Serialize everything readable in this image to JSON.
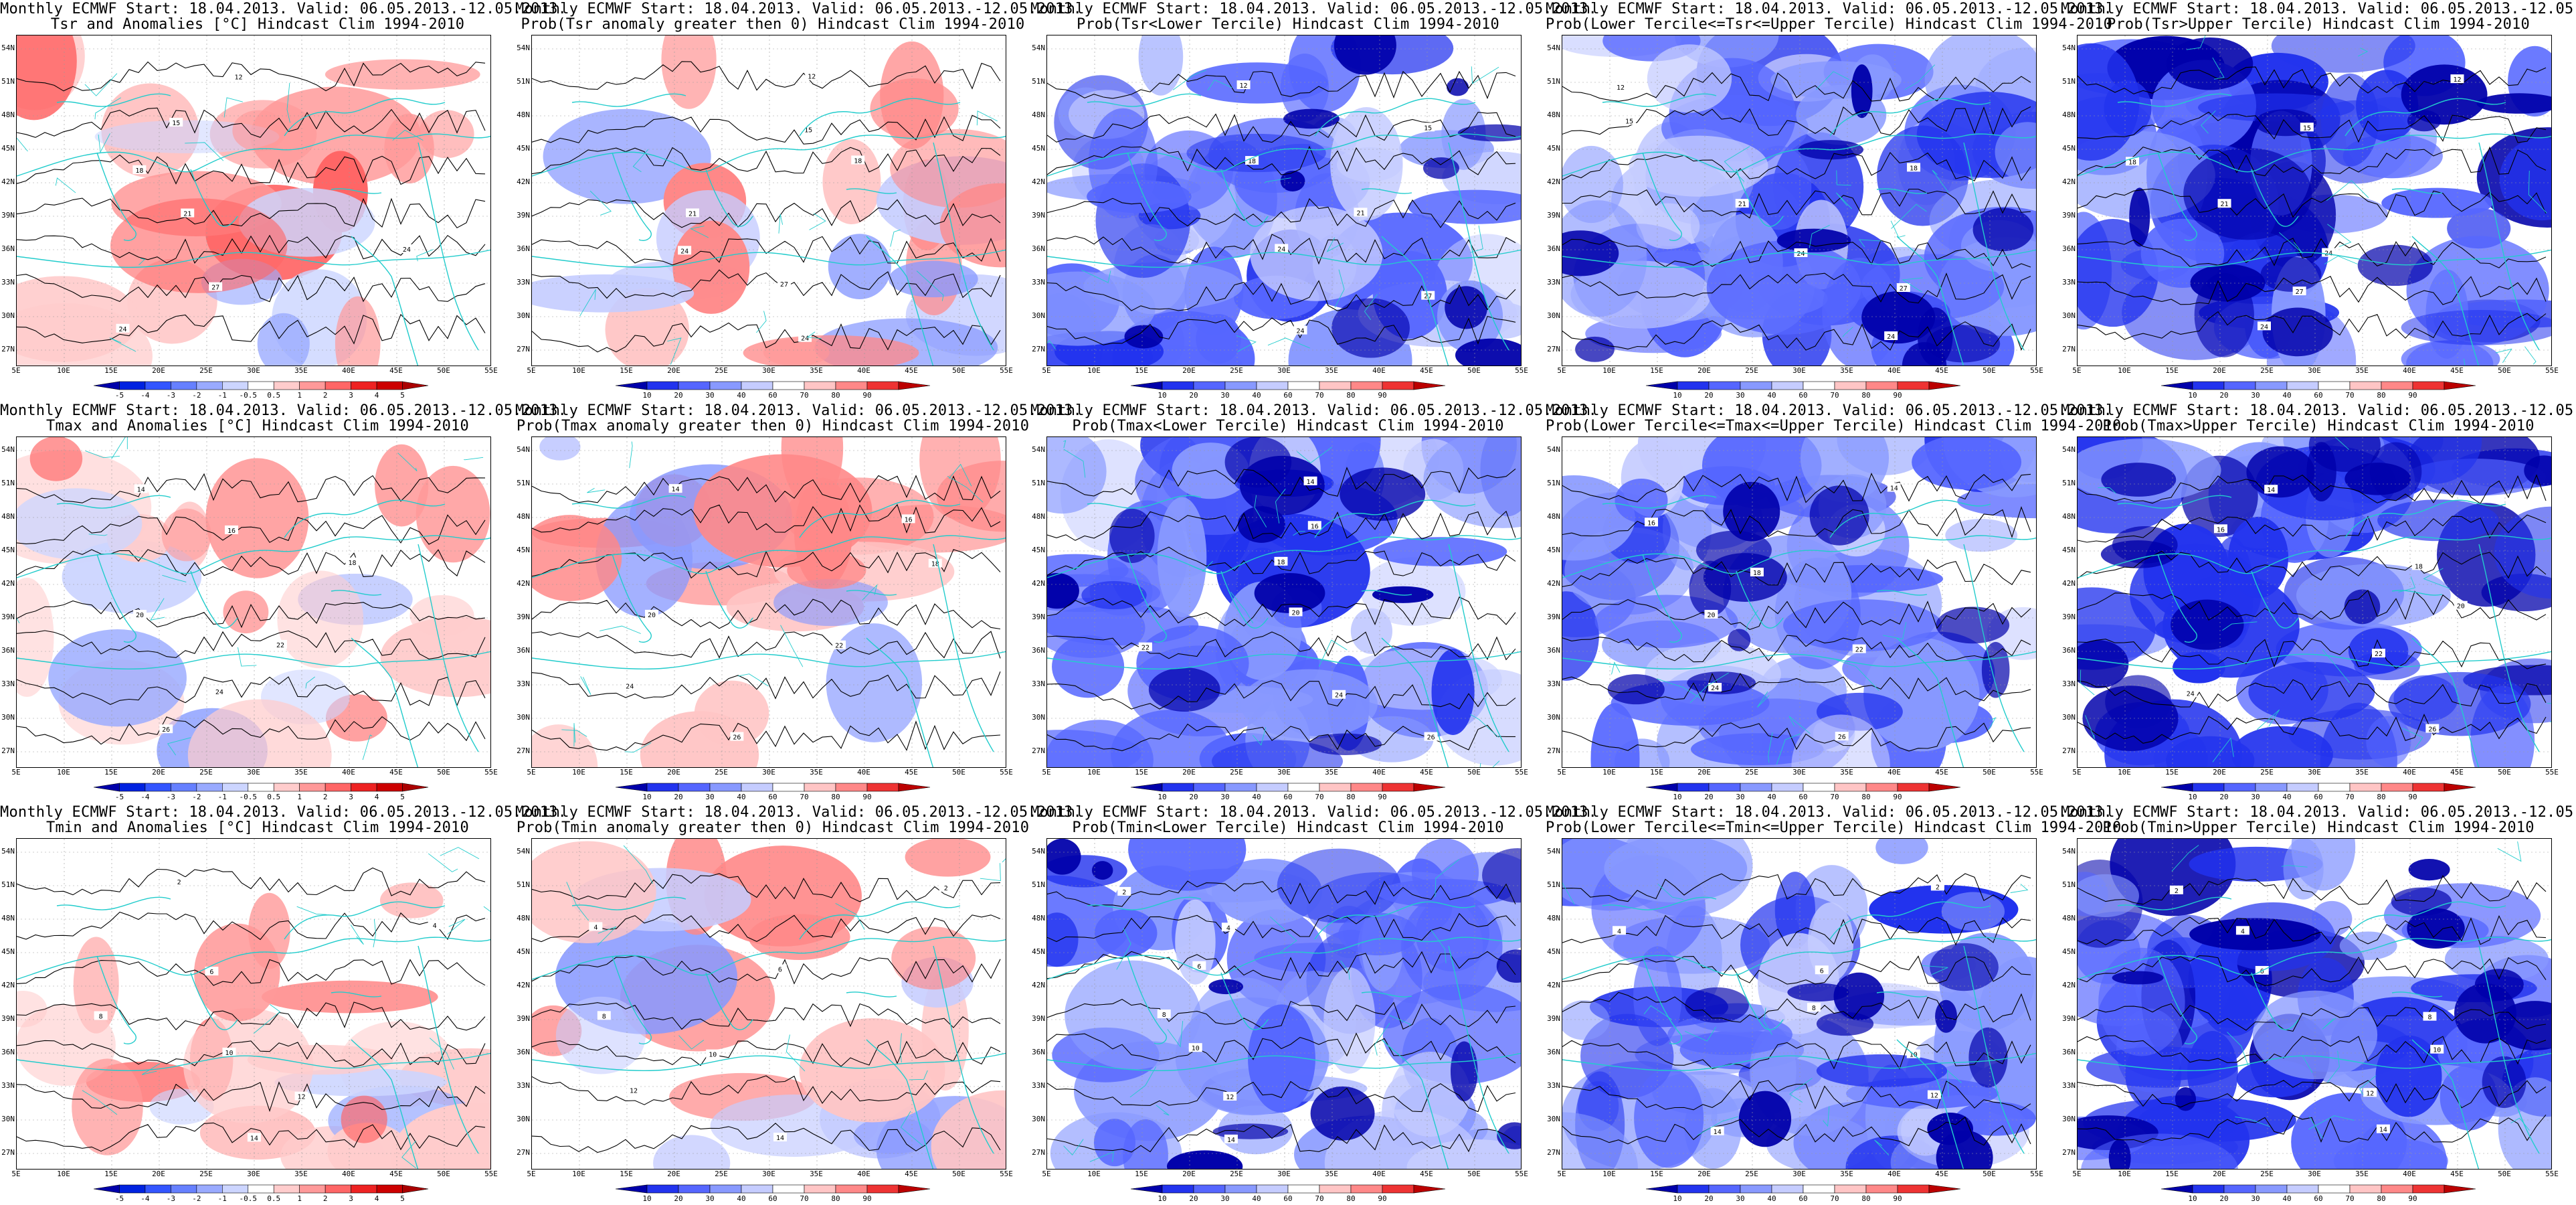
{
  "figure": {
    "common_title": "Monthly ECMWF Start: 18.04.2013. Valid: 06.05.2013.-12.05.2013.",
    "lat_labels": [
      "54N",
      "51N",
      "48N",
      "45N",
      "42N",
      "39N",
      "36N",
      "33N",
      "30N",
      "27N"
    ],
    "lon_labels": [
      "5E",
      "10E",
      "15E",
      "20E",
      "25E",
      "30E",
      "35E",
      "40E",
      "45E",
      "50E",
      "55E"
    ],
    "anomaly_colorbar": {
      "labels": [
        "-5",
        "-4",
        "-3",
        "-2",
        "-1",
        "-0.5",
        "0.5",
        "1",
        "2",
        "3",
        "4",
        "5"
      ],
      "colors": [
        "#0000aa",
        "#0022e0",
        "#3355ff",
        "#6680ff",
        "#99aaff",
        "#ccd5ff",
        "#ffffff",
        "#ffcccc",
        "#ff9999",
        "#ff6666",
        "#ee2222",
        "#cc0000",
        "#aa0000"
      ]
    },
    "probability_colorbar": {
      "labels": [
        "10",
        "20",
        "30",
        "40",
        "60",
        "70",
        "80",
        "90"
      ],
      "colors": [
        "#0000aa",
        "#2233ee",
        "#5566ff",
        "#8899ff",
        "#c5ccff",
        "#ffffff",
        "#ffc5c5",
        "#ff8888",
        "#ee3333",
        "#bb0000"
      ]
    },
    "map_colors": {
      "sea": "#ffffff",
      "coast": "#22cccc",
      "contour": "#000000",
      "grid": "#999999"
    },
    "panels": [
      {
        "title2": "Tsr and Anomalies [°C] Hindcast Clim 1994-2010",
        "kind": "anom",
        "theme": "warm",
        "seed": 11,
        "contours": [
          "12",
          "15",
          "18",
          "21",
          "24",
          "27",
          "24"
        ]
      },
      {
        "title2": "Prob(Tsr anomaly greater then 0) Hindcast Clim 1994-2010",
        "kind": "prob",
        "theme": "warm",
        "seed": 23,
        "contours": [
          "12",
          "15",
          "18",
          "21",
          "24",
          "27",
          "24"
        ]
      },
      {
        "title2": "Prob(Tsr<Lower Tercile) Hindcast Clim 1994-2010",
        "kind": "prob",
        "theme": "blue",
        "seed": 37,
        "contours": [
          "12",
          "15",
          "18",
          "21",
          "24",
          "27",
          "24"
        ]
      },
      {
        "title2": "Prob(Lower Tercile<=Tsr<=Upper Tercile) Hindcast Clim 1994-2010",
        "kind": "prob",
        "theme": "blue",
        "seed": 41,
        "contours": [
          "12",
          "15",
          "18",
          "21",
          "24",
          "27",
          "24"
        ]
      },
      {
        "title2": "Prob(Tsr>Upper Tercile) Hindcast Clim 1994-2010",
        "kind": "prob",
        "theme": "deepblue",
        "seed": 53,
        "contours": [
          "12",
          "15",
          "18",
          "21",
          "24",
          "27",
          "24"
        ]
      },
      {
        "title2": "Tmax and Anomalies [°C] Hindcast Clim 1994-2010",
        "kind": "anom",
        "theme": "warm",
        "seed": 67,
        "contours": [
          "14",
          "16",
          "18",
          "20",
          "22",
          "24",
          "26"
        ]
      },
      {
        "title2": "Prob(Tmax anomaly greater then 0) Hindcast Clim 1994-2010",
        "kind": "prob",
        "theme": "warm",
        "seed": 71,
        "contours": [
          "14",
          "16",
          "18",
          "20",
          "22",
          "24",
          "26"
        ]
      },
      {
        "title2": "Prob(Tmax<Lower Tercile) Hindcast Clim 1994-2010",
        "kind": "prob",
        "theme": "blue",
        "seed": 83,
        "contours": [
          "14",
          "16",
          "18",
          "20",
          "22",
          "24",
          "26"
        ]
      },
      {
        "title2": "Prob(Lower Tercile<=Tmax<=Upper Tercile) Hindcast Clim 1994-2010",
        "kind": "prob",
        "theme": "blue",
        "seed": 97,
        "contours": [
          "14",
          "16",
          "18",
          "20",
          "22",
          "24",
          "26"
        ]
      },
      {
        "title2": "Prob(Tmax>Upper Tercile) Hindcast Clim 1994-2010",
        "kind": "prob",
        "theme": "deepblue",
        "seed": 101,
        "contours": [
          "14",
          "16",
          "18",
          "20",
          "22",
          "24",
          "26"
        ]
      },
      {
        "title2": "Tmin and Anomalies [°C] Hindcast Clim 1994-2010",
        "kind": "anom",
        "theme": "warm",
        "seed": 113,
        "contours": [
          "2",
          "4",
          "6",
          "8",
          "10",
          "12",
          "14"
        ]
      },
      {
        "title2": "Prob(Tmin anomaly greater then 0) Hindcast Clim 1994-2010",
        "kind": "prob",
        "theme": "warm",
        "seed": 127,
        "contours": [
          "2",
          "4",
          "6",
          "8",
          "10",
          "12",
          "14"
        ]
      },
      {
        "title2": "Prob(Tmin<Lower Tercile) Hindcast Clim 1994-2010",
        "kind": "prob",
        "theme": "blue",
        "seed": 131,
        "contours": [
          "2",
          "4",
          "6",
          "8",
          "10",
          "12",
          "14"
        ]
      },
      {
        "title2": "Prob(Lower Tercile<=Tmin<=Upper Tercile) Hindcast Clim 1994-2010",
        "kind": "prob",
        "theme": "blue",
        "seed": 149,
        "contours": [
          "2",
          "4",
          "6",
          "8",
          "10",
          "12",
          "14"
        ]
      },
      {
        "title2": "Prob(Tmin>Upper Tercile) Hindcast Clim 1994-2010",
        "kind": "prob",
        "theme": "deepblue",
        "seed": 157,
        "contours": [
          "2",
          "4",
          "6",
          "8",
          "10",
          "12",
          "14"
        ]
      }
    ]
  }
}
